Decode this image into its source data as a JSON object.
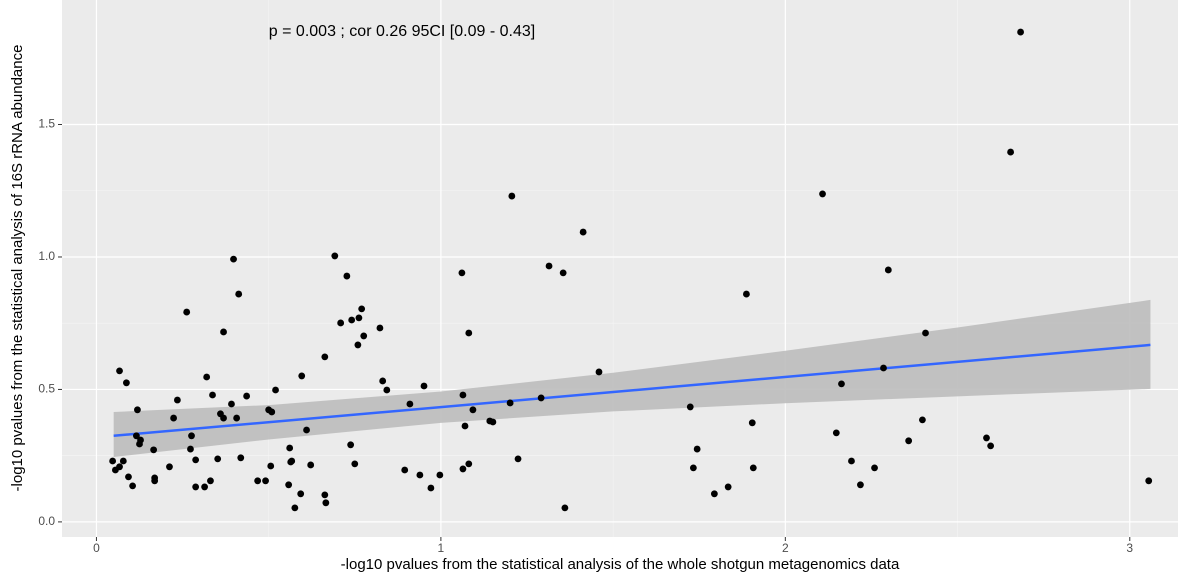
{
  "chart_data": {
    "type": "scatter",
    "annotation": "p = 0.003 ; cor 0.26 95CI [0.09 - 0.43]",
    "x_label": "-log10 pvalues from the statistical analysis of the whole shotgun metagenomics data",
    "y_label": "-log10 pvalues from the statistical analysis of 16S rRNA abundance",
    "xlim": [
      -0.1,
      3.14
    ],
    "ylim": [
      -0.057,
      1.97
    ],
    "xticks": [
      0,
      1,
      2,
      3
    ],
    "yticks": [
      {
        "value": 0,
        "label": "0.0"
      },
      0.5,
      {
        "value": 1,
        "label": "1.0"
      },
      1.5
    ],
    "grid": true,
    "series": [
      {
        "color": "#000000",
        "x": [
          0.047,
          0.055,
          0.067,
          0.067,
          0.078,
          0.087,
          0.093,
          0.105,
          0.116,
          0.119,
          0.125,
          0.128,
          0.166,
          0.169,
          0.169,
          0.212,
          0.224,
          0.235,
          0.262,
          0.273,
          0.276,
          0.288,
          0.288,
          0.314,
          0.32,
          0.331,
          0.337,
          0.352,
          0.36,
          0.369,
          0.369,
          0.392,
          0.398,
          0.407,
          0.413,
          0.419,
          0.436,
          0.468,
          0.491,
          0.5,
          0.506,
          0.509,
          0.52,
          0.558,
          0.561,
          0.564,
          0.567,
          0.576,
          0.593,
          0.596,
          0.61,
          0.622,
          0.663,
          0.663,
          0.666,
          0.692,
          0.709,
          0.727,
          0.738,
          0.741,
          0.75,
          0.759,
          0.762,
          0.77,
          0.776,
          0.823,
          0.831,
          0.843,
          0.895,
          0.91,
          0.939,
          0.951,
          0.971,
          0.997,
          1.061,
          1.064,
          1.064,
          1.07,
          1.081,
          1.081,
          1.093,
          1.142,
          1.151,
          1.201,
          1.206,
          1.224,
          1.291,
          1.314,
          1.355,
          1.36,
          1.413,
          1.459,
          1.724,
          1.733,
          1.744,
          1.794,
          1.834,
          1.887,
          1.904,
          1.907,
          2.108,
          2.148,
          2.163,
          2.192,
          2.218,
          2.259,
          2.285,
          2.299,
          2.358,
          2.398,
          2.407,
          2.584,
          2.596,
          2.654,
          2.683,
          3.055
        ],
        "y": [
          0.23,
          0.196,
          0.208,
          0.57,
          0.23,
          0.525,
          0.17,
          0.136,
          0.325,
          0.423,
          0.294,
          0.309,
          0.272,
          0.155,
          0.166,
          0.208,
          0.392,
          0.46,
          0.792,
          0.275,
          0.325,
          0.132,
          0.234,
          0.132,
          0.547,
          0.155,
          0.479,
          0.238,
          0.408,
          0.717,
          0.392,
          0.445,
          0.992,
          0.392,
          0.86,
          0.242,
          0.475,
          0.155,
          0.155,
          0.423,
          0.211,
          0.415,
          0.498,
          0.14,
          0.279,
          0.226,
          0.23,
          0.053,
          0.106,
          0.551,
          0.347,
          0.215,
          0.623,
          0.102,
          0.072,
          1.004,
          0.751,
          0.928,
          0.291,
          0.762,
          0.219,
          0.668,
          0.77,
          0.804,
          0.702,
          0.732,
          0.532,
          0.498,
          0.196,
          0.445,
          0.177,
          0.513,
          0.128,
          0.177,
          0.94,
          0.479,
          0.2,
          0.362,
          0.219,
          0.713,
          0.423,
          0.381,
          0.377,
          0.449,
          1.23,
          0.238,
          0.468,
          0.966,
          0.94,
          0.053,
          1.094,
          0.566,
          0.434,
          0.204,
          0.275,
          0.106,
          0.132,
          0.86,
          0.374,
          0.204,
          1.238,
          0.336,
          0.521,
          0.23,
          0.14,
          0.204,
          0.581,
          0.951,
          0.306,
          0.385,
          0.713,
          0.317,
          0.287,
          1.396,
          1.849,
          0.155
        ]
      }
    ],
    "fit": {
      "color": "#3366ff",
      "x": [
        0.05,
        3.06
      ],
      "y": [
        0.325,
        0.668
      ]
    },
    "band": {
      "color": "#bdbdbd",
      "x": [
        0.05,
        0.5,
        1.0,
        1.5,
        2.0,
        2.5,
        3.06
      ],
      "lower": [
        0.245,
        0.311,
        0.374,
        0.417,
        0.448,
        0.474,
        0.502
      ],
      "upper": [
        0.415,
        0.441,
        0.492,
        0.563,
        0.646,
        0.734,
        0.838
      ]
    }
  }
}
